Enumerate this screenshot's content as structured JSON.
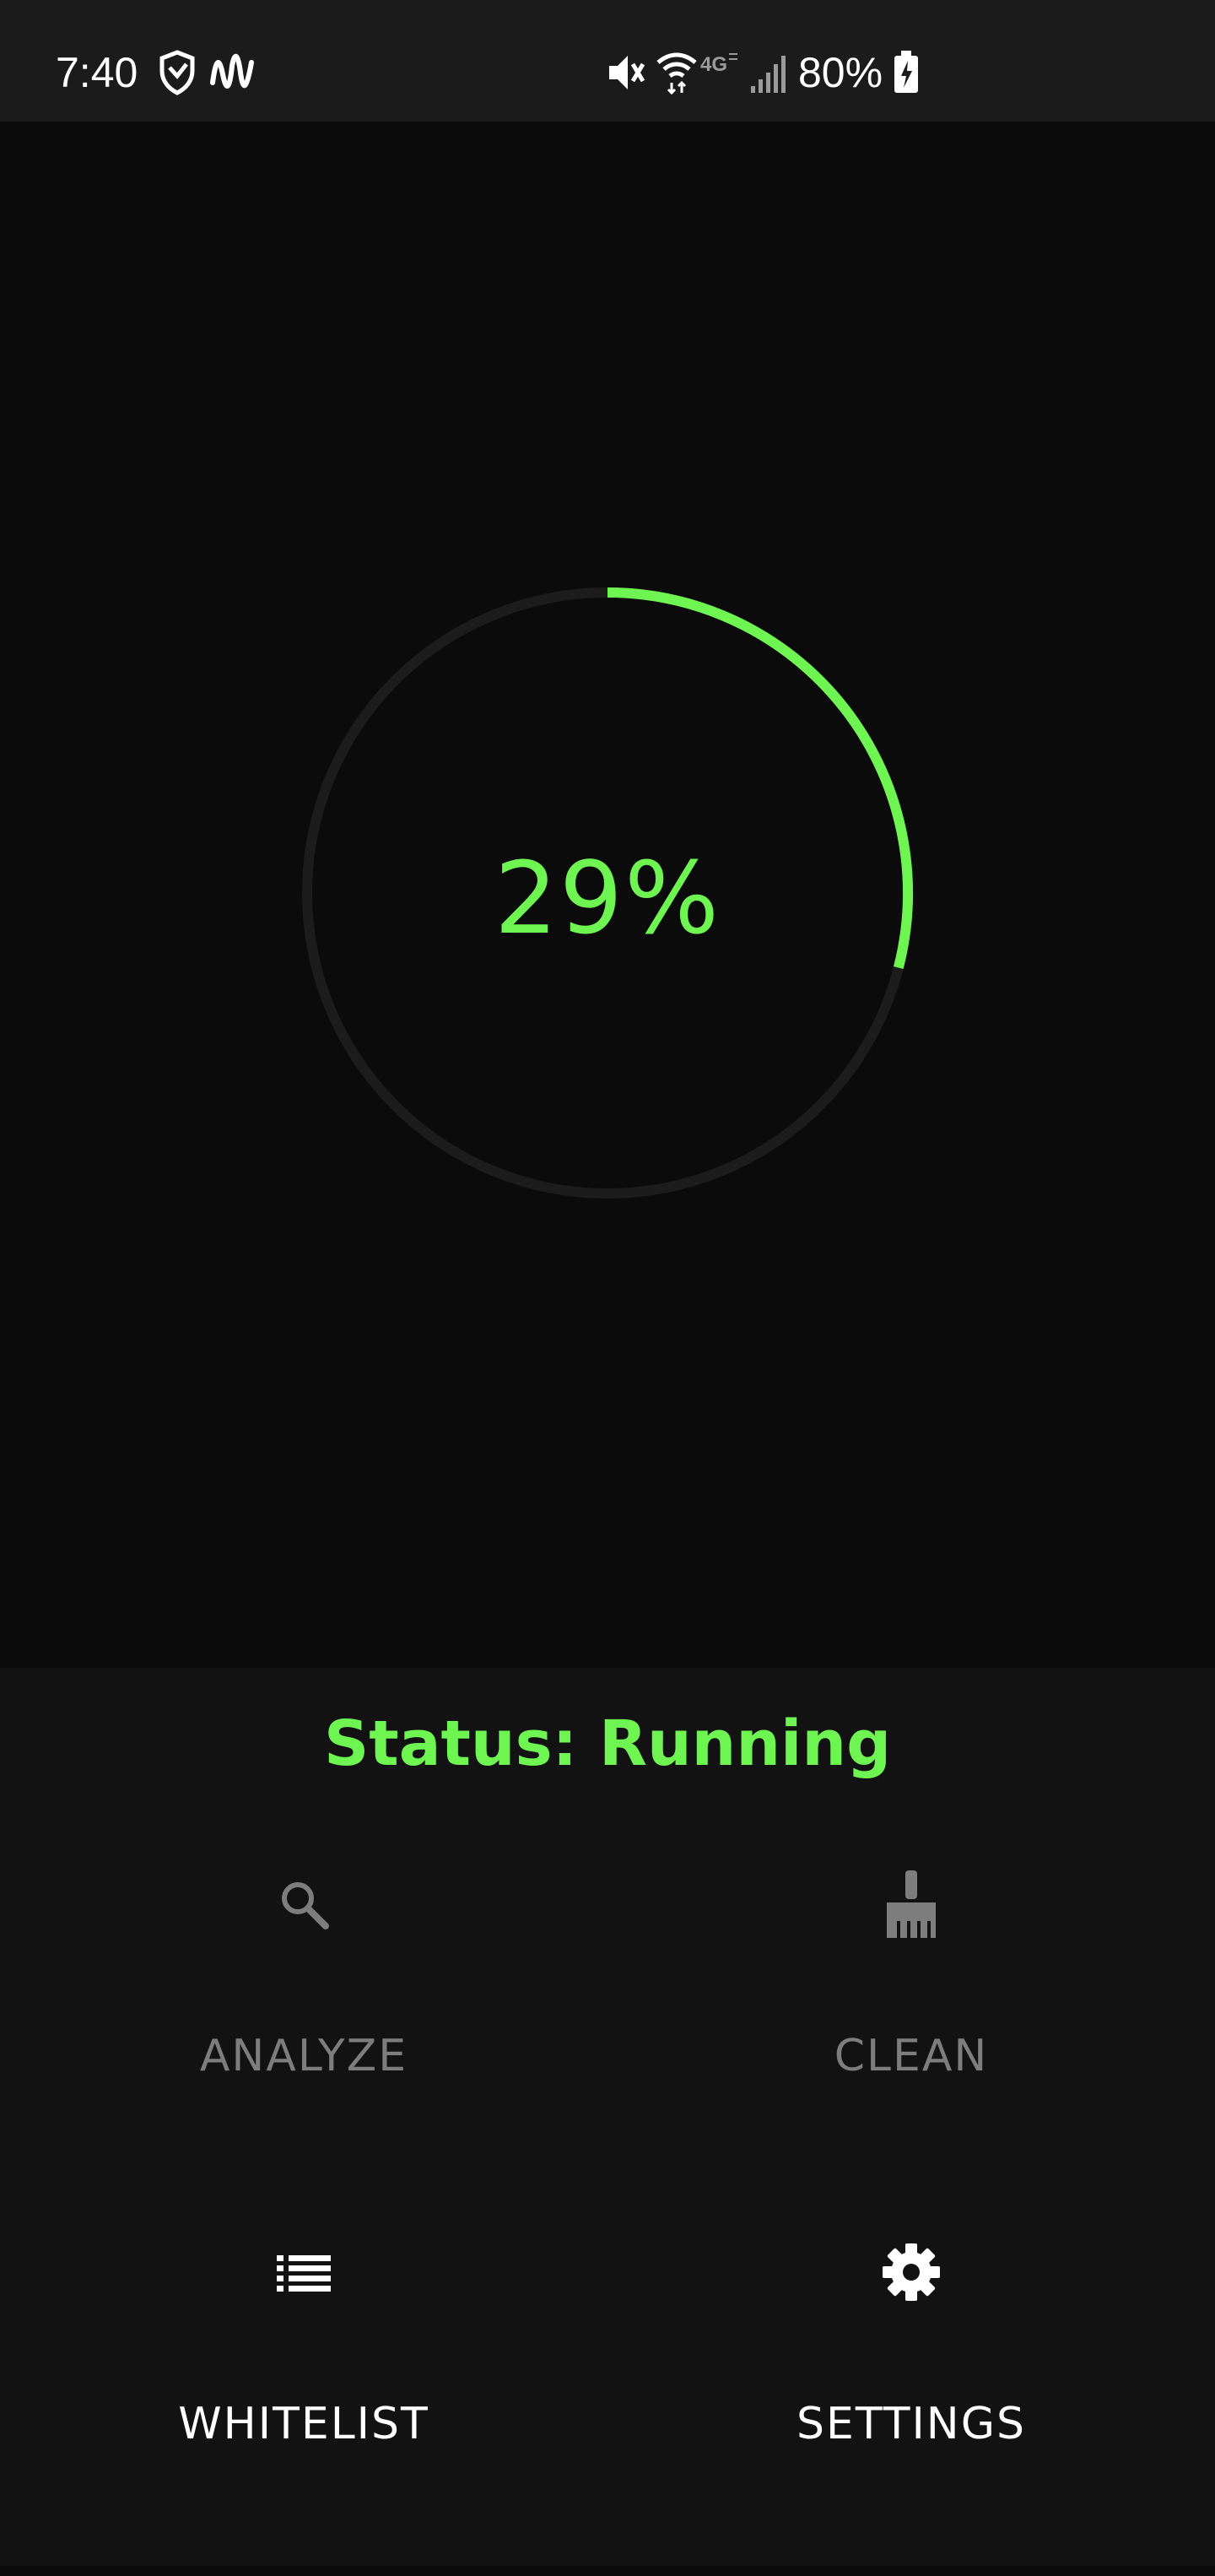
{
  "status_bar": {
    "time": "7:40",
    "battery": "80%",
    "icons": [
      "shield-icon",
      "waveform-icon",
      "mute-icon",
      "wifi-icon",
      "4g-icon",
      "signal-icon",
      "battery-charging-icon"
    ]
  },
  "progress": {
    "value": 29,
    "label": "29%",
    "color": "#6ff552",
    "track_color": "#1c1c1c"
  },
  "panel": {
    "status_text": "Status: Running",
    "actions": [
      {
        "label": "ANALYZE",
        "icon": "search-icon",
        "enabled": false
      },
      {
        "label": "CLEAN",
        "icon": "broom-icon",
        "enabled": false
      },
      {
        "label": "WHITELIST",
        "icon": "list-icon",
        "enabled": true
      },
      {
        "label": "SETTINGS",
        "icon": "gear-icon",
        "enabled": true
      }
    ]
  },
  "colors": {
    "accent": "#6ff552",
    "background": "#0b0b0b",
    "panel": "#121212",
    "status_bar": "#1b1b1b",
    "disabled_text": "#7d7d7d"
  }
}
